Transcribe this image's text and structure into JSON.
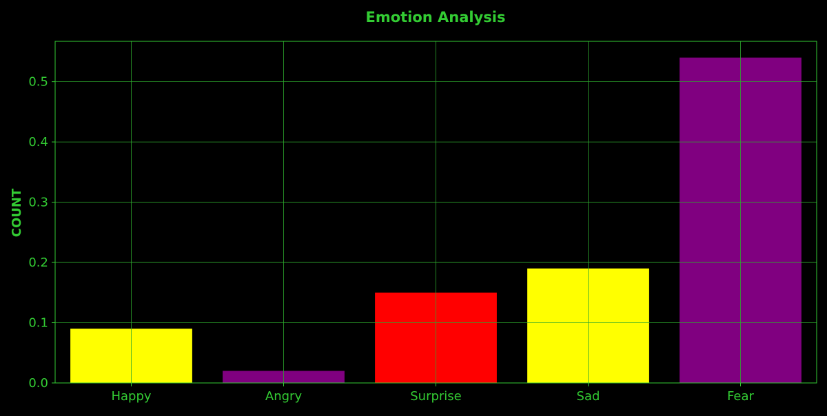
{
  "chart_data": {
    "type": "bar",
    "title": "Emotion Analysis",
    "xlabel": "",
    "ylabel": "COUNT",
    "categories": [
      "Happy",
      "Angry",
      "Surprise",
      "Sad",
      "Fear"
    ],
    "values": [
      0.09,
      0.02,
      0.15,
      0.19,
      0.54
    ],
    "bar_colors": [
      "#ffff00",
      "#800080",
      "#ff0000",
      "#ffff00",
      "#800080"
    ],
    "ylim": [
      0,
      0.567
    ],
    "yticks": [
      0.0,
      0.1,
      0.2,
      0.3,
      0.4,
      0.5
    ],
    "ytick_labels": [
      "0.0",
      "0.1",
      "0.2",
      "0.3",
      "0.4",
      "0.5"
    ],
    "grid": true,
    "legend": "none"
  },
  "colors": {
    "background": "#000000",
    "accent": "#33cc33",
    "grid": "#2ea82e"
  }
}
